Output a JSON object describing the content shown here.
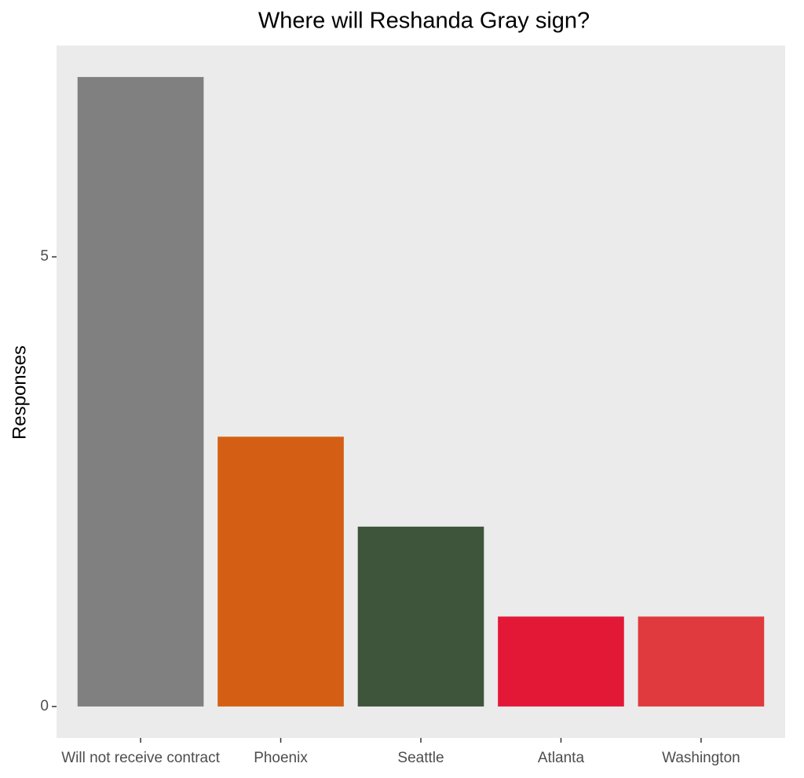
{
  "chart_data": {
    "type": "bar",
    "title": "Where will Reshanda Gray sign?",
    "y_label": "Responses",
    "categories": [
      "Will not receive contract",
      "Phoenix",
      "Seattle",
      "Atlanta",
      "Washington"
    ],
    "values": [
      7,
      3,
      2,
      1,
      1
    ],
    "colors": [
      "#808080",
      "#D45F14",
      "#3E553C",
      "#E31837",
      "#E03A3E"
    ],
    "ylim": [
      -0.35,
      7.35
    ],
    "yticks": [
      0,
      5
    ],
    "grid": false
  }
}
